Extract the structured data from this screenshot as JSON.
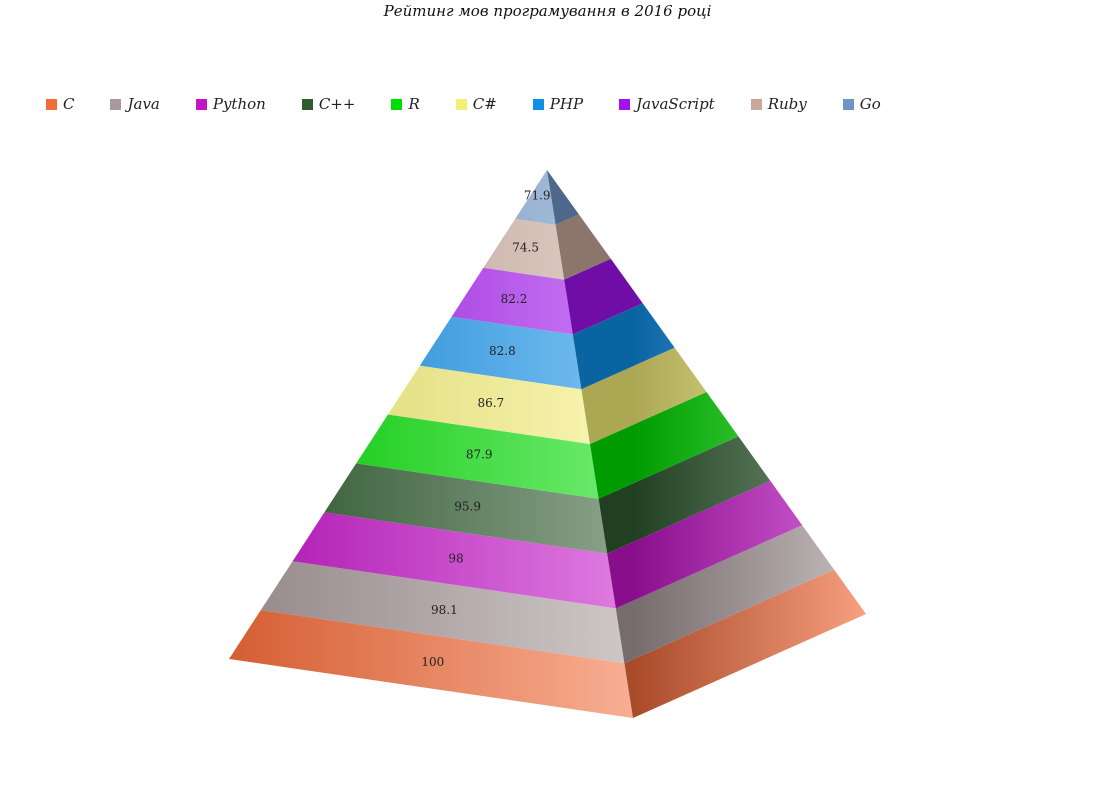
{
  "chart_data": {
    "type": "pyramid",
    "title": "Рейтинг мов програмування в 2016 році",
    "categories": [
      "C",
      "Java",
      "Python",
      "C++",
      "R",
      "C#",
      "PHP",
      "JavaScript",
      "Ruby",
      "Go"
    ],
    "values": [
      100,
      98.1,
      98,
      95.9,
      87.9,
      86.7,
      82.8,
      82.2,
      74.5,
      71.9
    ],
    "value_labels": [
      "100",
      "98.1",
      "98",
      "95.9",
      "87.9",
      "86.7",
      "82.8",
      "82.2",
      "74.5",
      "71.9"
    ],
    "colors": [
      "#f26b3a",
      "#a8999b",
      "#c414c8",
      "#2f5c2f",
      "#00dd00",
      "#f4ef76",
      "#0f8fe8",
      "#a012ee",
      "#c8a89a",
      "#6e95c6"
    ],
    "legend_position": "top-left"
  }
}
